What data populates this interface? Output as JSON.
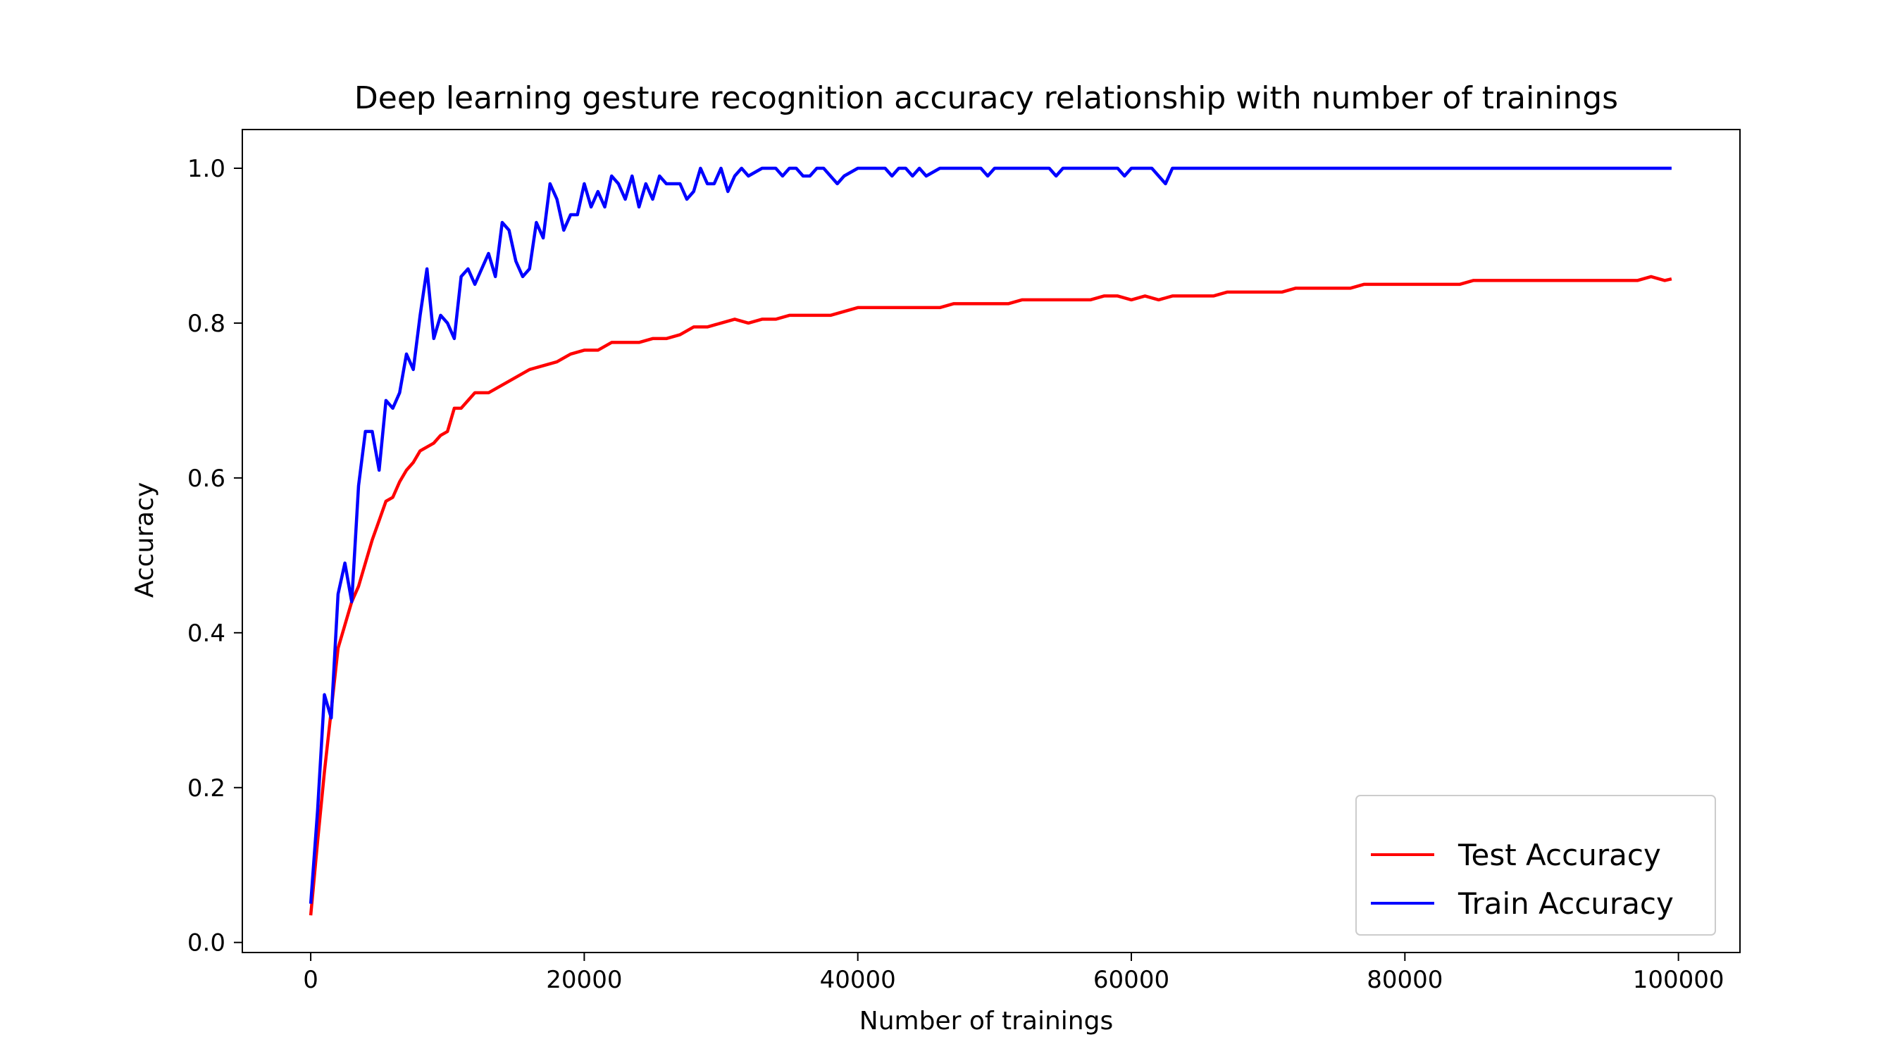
{
  "chart_data": {
    "type": "line",
    "title": "Deep learning gesture recognition accuracy relationship with number of trainings",
    "xlabel": "Number of trainings",
    "ylabel": "Accuracy",
    "xlim": [
      -5000,
      104500
    ],
    "ylim": [
      -0.013,
      1.05
    ],
    "xticks": [
      0,
      20000,
      40000,
      60000,
      80000,
      100000
    ],
    "yticks": [
      0.0,
      0.2,
      0.4,
      0.6,
      0.8,
      1.0
    ],
    "xtick_labels": [
      "0",
      "20000",
      "40000",
      "60000",
      "80000",
      "100000"
    ],
    "ytick_labels": [
      "0.0",
      "0.2",
      "0.4",
      "0.6",
      "0.8",
      "1.0"
    ],
    "grid": false,
    "legend_position": "lower-right",
    "series": [
      {
        "name": "Test Accuracy",
        "color": "#ff0000",
        "x": [
          0,
          500,
          1000,
          1500,
          2000,
          2500,
          3000,
          3500,
          4000,
          4500,
          5000,
          5500,
          6000,
          6500,
          7000,
          7500,
          8000,
          8500,
          9000,
          9500,
          10000,
          10500,
          11000,
          12000,
          13000,
          14000,
          15000,
          16000,
          17000,
          18000,
          19000,
          20000,
          21000,
          22000,
          23000,
          24000,
          25000,
          26000,
          27000,
          28000,
          29000,
          30000,
          31000,
          32000,
          33000,
          34000,
          35000,
          36000,
          37000,
          38000,
          39000,
          40000,
          41000,
          42000,
          43000,
          44000,
          45000,
          46000,
          47000,
          48000,
          49000,
          50000,
          51000,
          52000,
          53000,
          54000,
          55000,
          56000,
          57000,
          58000,
          59000,
          60000,
          61000,
          62000,
          63000,
          64000,
          65000,
          66000,
          67000,
          68000,
          69000,
          70000,
          71000,
          72000,
          73000,
          74000,
          75000,
          76000,
          77000,
          78000,
          79000,
          80000,
          81000,
          82000,
          83000,
          84000,
          85000,
          86000,
          87000,
          88000,
          89000,
          90000,
          91000,
          92000,
          93000,
          94000,
          95000,
          96000,
          97000,
          98000,
          99000,
          99500
        ],
        "values": [
          0.035,
          0.13,
          0.22,
          0.3,
          0.38,
          0.41,
          0.44,
          0.46,
          0.49,
          0.52,
          0.545,
          0.57,
          0.575,
          0.595,
          0.61,
          0.62,
          0.635,
          0.64,
          0.645,
          0.655,
          0.66,
          0.69,
          0.69,
          0.71,
          0.71,
          0.72,
          0.73,
          0.74,
          0.745,
          0.75,
          0.76,
          0.765,
          0.765,
          0.775,
          0.775,
          0.775,
          0.78,
          0.78,
          0.785,
          0.795,
          0.795,
          0.8,
          0.805,
          0.8,
          0.805,
          0.805,
          0.81,
          0.81,
          0.81,
          0.81,
          0.815,
          0.82,
          0.82,
          0.82,
          0.82,
          0.82,
          0.82,
          0.82,
          0.825,
          0.825,
          0.825,
          0.825,
          0.825,
          0.83,
          0.83,
          0.83,
          0.83,
          0.83,
          0.83,
          0.835,
          0.835,
          0.83,
          0.835,
          0.83,
          0.835,
          0.835,
          0.835,
          0.835,
          0.84,
          0.84,
          0.84,
          0.84,
          0.84,
          0.845,
          0.845,
          0.845,
          0.845,
          0.845,
          0.85,
          0.85,
          0.85,
          0.85,
          0.85,
          0.85,
          0.85,
          0.85,
          0.855,
          0.855,
          0.855,
          0.855,
          0.855,
          0.855,
          0.855,
          0.855,
          0.855,
          0.855,
          0.855,
          0.855,
          0.855,
          0.86,
          0.855,
          0.857
        ]
      },
      {
        "name": "Train Accuracy",
        "color": "#0000ff",
        "x": [
          0,
          500,
          1000,
          1500,
          2000,
          2500,
          3000,
          3500,
          4000,
          4500,
          5000,
          5500,
          6000,
          6500,
          7000,
          7500,
          8000,
          8500,
          9000,
          9500,
          10000,
          10500,
          11000,
          11500,
          12000,
          12500,
          13000,
          13500,
          14000,
          14500,
          15000,
          15500,
          16000,
          16500,
          17000,
          17500,
          18000,
          18500,
          19000,
          19500,
          20000,
          20500,
          21000,
          21500,
          22000,
          22500,
          23000,
          23500,
          24000,
          24500,
          25000,
          25500,
          26000,
          26500,
          27000,
          27500,
          28000,
          28500,
          29000,
          29500,
          30000,
          30500,
          31000,
          31500,
          32000,
          33000,
          33500,
          34000,
          34500,
          35000,
          35500,
          36000,
          36500,
          37000,
          37500,
          38000,
          38500,
          39000,
          40000,
          41000,
          42000,
          42500,
          43000,
          43500,
          44000,
          44500,
          45000,
          46000,
          48000,
          49000,
          49500,
          50000,
          52000,
          54000,
          54500,
          55000,
          57000,
          59000,
          59500,
          60000,
          61000,
          61500,
          62000,
          62500,
          63000,
          65000,
          70000,
          75000,
          80000,
          85000,
          90000,
          95000,
          99500
        ],
        "values": [
          0.05,
          0.17,
          0.32,
          0.29,
          0.45,
          0.49,
          0.44,
          0.59,
          0.66,
          0.66,
          0.61,
          0.7,
          0.69,
          0.71,
          0.76,
          0.74,
          0.81,
          0.87,
          0.78,
          0.81,
          0.8,
          0.78,
          0.86,
          0.87,
          0.85,
          0.87,
          0.89,
          0.86,
          0.93,
          0.92,
          0.88,
          0.86,
          0.87,
          0.93,
          0.91,
          0.98,
          0.96,
          0.92,
          0.94,
          0.94,
          0.98,
          0.95,
          0.97,
          0.95,
          0.99,
          0.98,
          0.96,
          0.99,
          0.95,
          0.98,
          0.96,
          0.99,
          0.98,
          0.98,
          0.98,
          0.96,
          0.97,
          1.0,
          0.98,
          0.98,
          1.0,
          0.97,
          0.99,
          1.0,
          0.99,
          1.0,
          1.0,
          1.0,
          0.99,
          1.0,
          1.0,
          0.99,
          0.99,
          1.0,
          1.0,
          0.99,
          0.98,
          0.99,
          1.0,
          1.0,
          1.0,
          0.99,
          1.0,
          1.0,
          0.99,
          1.0,
          0.99,
          1.0,
          1.0,
          1.0,
          0.99,
          1.0,
          1.0,
          1.0,
          0.99,
          1.0,
          1.0,
          1.0,
          0.99,
          1.0,
          1.0,
          1.0,
          0.99,
          0.98,
          1.0,
          1.0,
          1.0,
          1.0,
          1.0,
          1.0,
          1.0,
          1.0,
          1.0
        ]
      }
    ]
  }
}
